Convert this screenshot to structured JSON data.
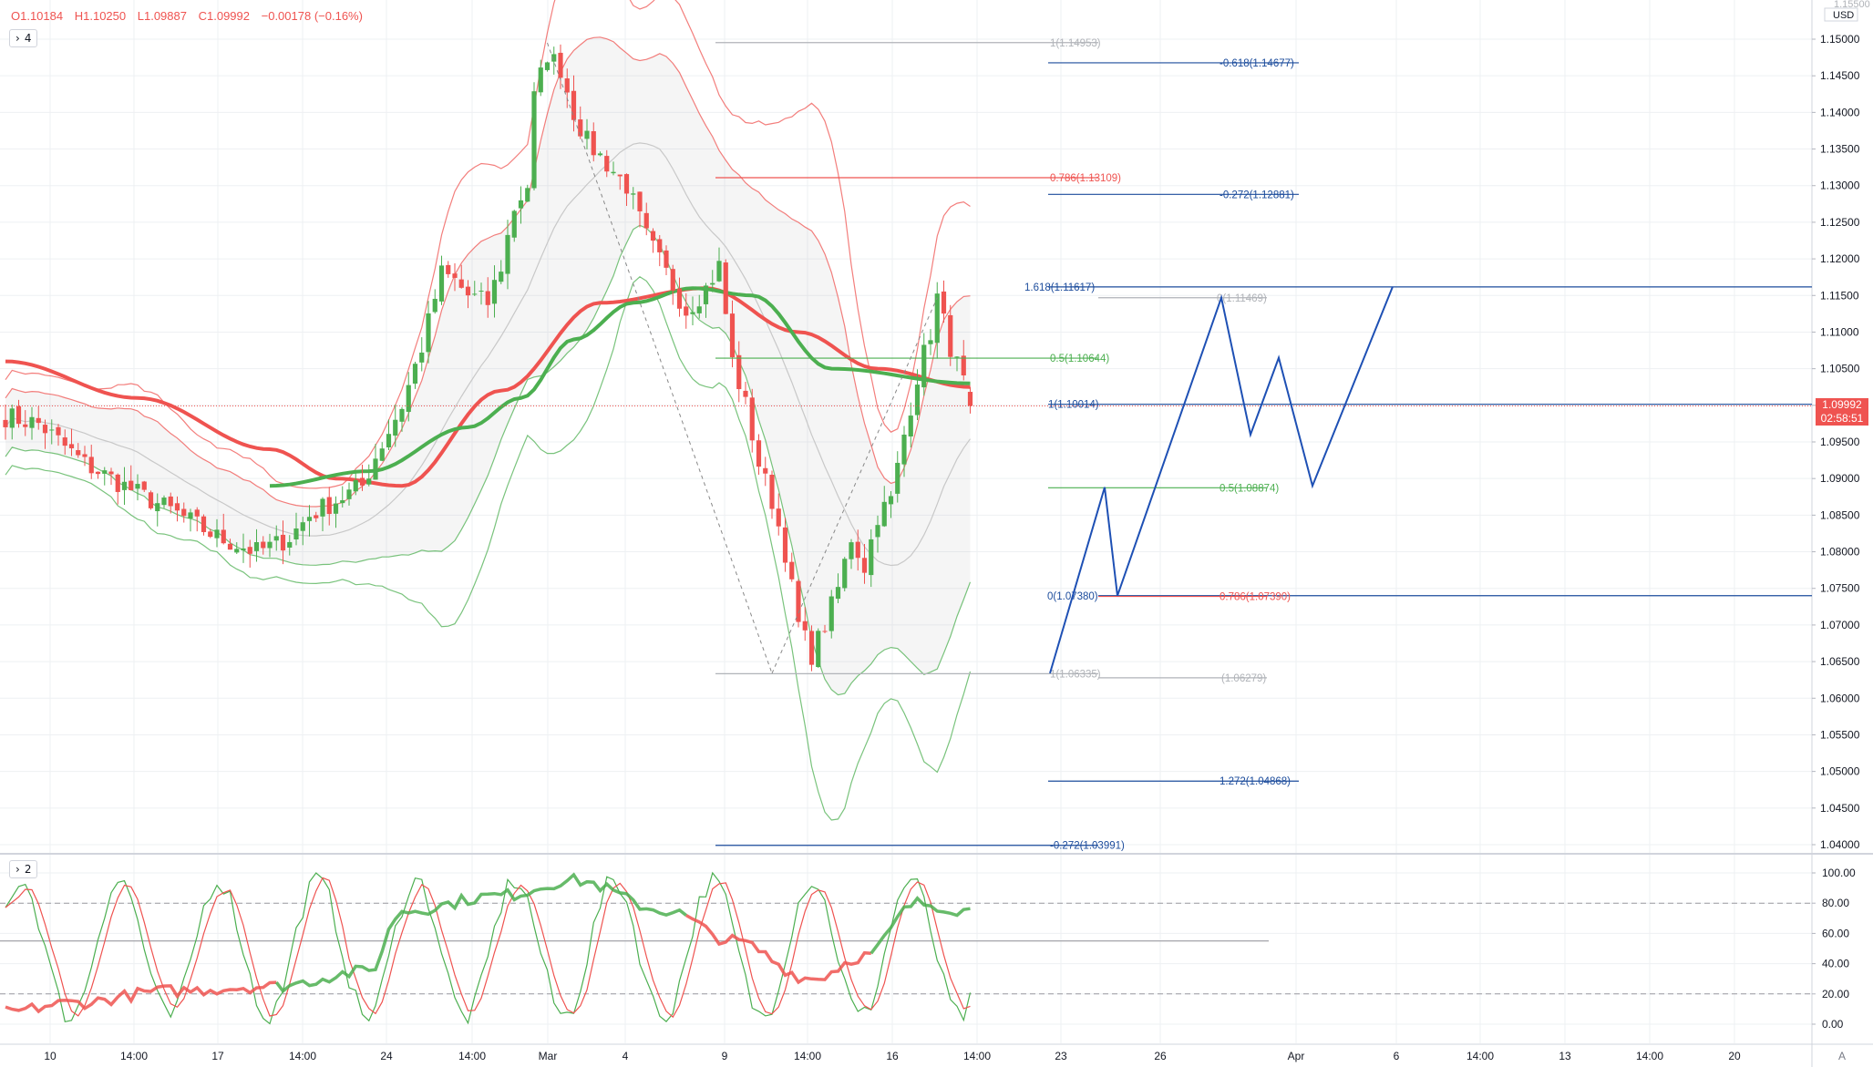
{
  "header": {
    "open": "O1.10184",
    "high": "H1.10250",
    "low": "L1.09887",
    "close": "C1.09992",
    "change": "−0.00178 (−0.16%)"
  },
  "main_pane": {
    "toggle_count": "4"
  },
  "sub_pane": {
    "toggle_count": "2"
  },
  "price_axis": {
    "currency": "USD",
    "top_cut_label": "1.15500",
    "ticks": [
      "1.15000",
      "1.14500",
      "1.14000",
      "1.13500",
      "1.13000",
      "1.12500",
      "1.12000",
      "1.11500",
      "1.11000",
      "1.10500",
      "1.10000",
      "1.09500",
      "1.09000",
      "1.08500",
      "1.08000",
      "1.07500",
      "1.07000",
      "1.06500",
      "1.06000",
      "1.05500",
      "1.05000",
      "1.04500",
      "1.04000"
    ],
    "current_price": "1.09992",
    "countdown": "02:58:51"
  },
  "osc_axis": {
    "ticks": [
      "100.00",
      "80.00",
      "60.00",
      "40.00",
      "20.00",
      "0.00"
    ]
  },
  "time_axis": {
    "labels": [
      "10",
      "14:00",
      "17",
      "14:00",
      "24",
      "14:00",
      "Mar",
      "4",
      "9",
      "14:00",
      "16",
      "14:00",
      "23",
      "26",
      "Apr",
      "6",
      "14:00",
      "13",
      "14:00",
      "20"
    ],
    "corner": "A"
  },
  "fib_labels": [
    "1(1.14953)",
    "-0.618(1.14677)",
    "0.786(1.13109)",
    "-0.272(1.12881)",
    "1.618(1.11617)",
    "0(1.11469)",
    "0.5(1.10644)",
    "1(1.10014)",
    "0.5(1.08874)",
    "0(1.07380)",
    "0.786(1.07390)",
    "1(1.06335)",
    "(1.06279)",
    "1.272(1.04868)",
    "-0.272(1.03991)"
  ],
  "colors": {
    "up": "#4caf50",
    "down": "#ef5350",
    "ma_red": "#ef5350",
    "ma_green": "#4caf50",
    "fib_blue": "#1c4c9c",
    "pattern": "#1e50b4",
    "current_price": "#ef5350"
  },
  "chart_data": {
    "type": "candlestick",
    "symbol_quote": "USD",
    "ylim": [
      1.036,
      1.156
    ],
    "oscillator_ylim": [
      -5,
      105
    ],
    "oscillator_levels": [
      80,
      55,
      20
    ],
    "notes": "Price chart with Bollinger-style envelopes, two moving averages, Fibonacci levels, projected zig-zag pattern and an oscillator sub-pane.",
    "anchors": [
      {
        "date": "10",
        "price": 1.098
      },
      {
        "date": "17",
        "price": 1.085
      },
      {
        "date": "24",
        "price": 1.0805
      },
      {
        "date": "Mar",
        "price": 1.102
      },
      {
        "date": "4",
        "price": 1.105
      },
      {
        "date": "9",
        "price": 1.145
      },
      {
        "date": "16",
        "price": 1.116
      },
      {
        "date": "23",
        "price": 1.066
      },
      {
        "date": "26",
        "price": 1.099
      },
      {
        "date": "current",
        "price": 1.09992
      }
    ]
  }
}
